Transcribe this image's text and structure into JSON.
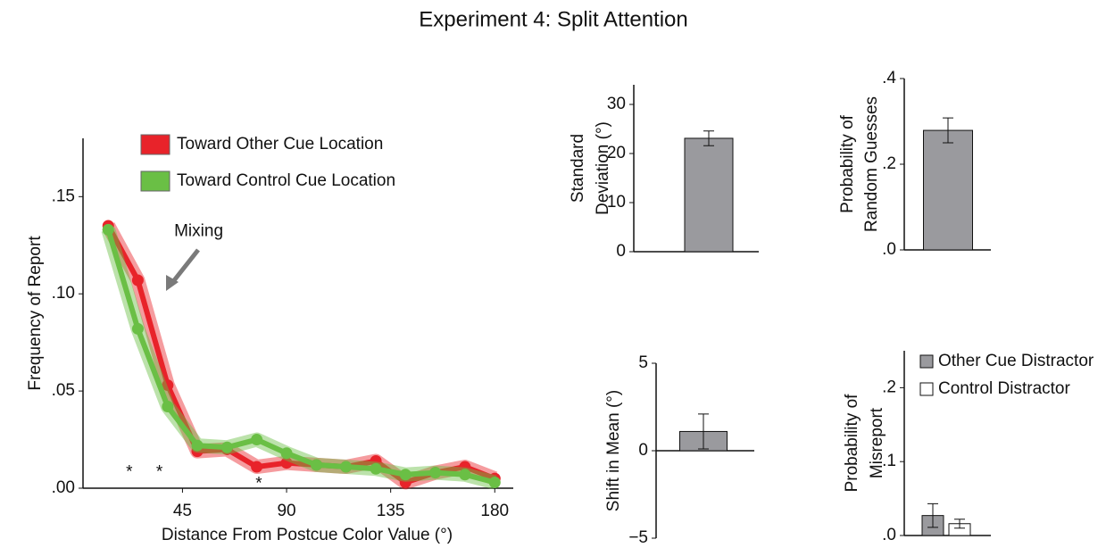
{
  "chart_data": [
    {
      "type": "line",
      "title": "Experiment 4: Split Attention",
      "xlabel": "Distance From Postcue Color Value (°)",
      "ylabel": "Frequency of Report",
      "x": [
        12.9,
        25.7,
        38.6,
        51.4,
        64.3,
        77.1,
        90,
        102.9,
        115.7,
        128.6,
        141.4,
        154.3,
        167.1,
        180
      ],
      "series": [
        {
          "name": "Toward Other Cue Location",
          "color": "#e8232a",
          "values": [
            0.135,
            0.107,
            0.053,
            0.019,
            0.02,
            0.011,
            0.013,
            0.012,
            0.011,
            0.014,
            0.003,
            0.008,
            0.011,
            0.005
          ]
        },
        {
          "name": "Toward Control Cue Location",
          "color": "#6abf45",
          "values": [
            0.133,
            0.082,
            0.042,
            0.022,
            0.021,
            0.025,
            0.018,
            0.012,
            0.011,
            0.01,
            0.007,
            0.008,
            0.007,
            0.003
          ]
        }
      ],
      "xlim": [
        2,
        188
      ],
      "xticks": [
        45,
        90,
        135,
        180
      ],
      "ylim": [
        0,
        0.18
      ],
      "yticks": [
        {
          "value": 0,
          "label": ".00"
        },
        {
          "value": 0.05,
          "label": ".05"
        },
        {
          "value": 0.1,
          "label": ".10"
        },
        {
          "value": 0.15,
          "label": ".15"
        }
      ],
      "legend": "upper left",
      "annotations": [
        {
          "text": "Mixing",
          "x": 52,
          "y": 0.132
        },
        {
          "text": "*",
          "x": 22,
          "y": 0.008
        },
        {
          "text": "*",
          "x": 35,
          "y": 0.008
        },
        {
          "text": "*",
          "x": 78,
          "y": 0.002
        }
      ]
    },
    {
      "type": "bar",
      "ylabel": [
        "Standard",
        "Deviation (°)"
      ],
      "values": [
        23.1
      ],
      "errors": [
        1.5
      ],
      "color": "#9a9a9e",
      "ylim": [
        0,
        34
      ],
      "yticks": [
        0,
        10,
        20,
        30
      ]
    },
    {
      "type": "bar",
      "ylabel": [
        "Probability of",
        "Random Guesses"
      ],
      "values": [
        0.279
      ],
      "errors": [
        0.029
      ],
      "color": "#9a9a9e",
      "ylim": [
        0,
        0.4
      ],
      "yticks": [
        {
          "value": 0,
          "label": ".0"
        },
        {
          "value": 0.2,
          "label": ".2"
        },
        {
          "value": 0.4,
          "label": ".4"
        }
      ]
    },
    {
      "type": "bar",
      "ylabel": [
        "Shift in Mean (°)"
      ],
      "values": [
        1.1
      ],
      "errors": [
        1.0
      ],
      "color": "#9a9a9e",
      "ylim": [
        -5,
        5
      ],
      "yticks": [
        {
          "value": -5,
          "label": "−5"
        },
        0,
        5
      ]
    },
    {
      "type": "bar",
      "ylabel": [
        "Probability of",
        "Misreport"
      ],
      "series": [
        {
          "name": "Other Cue Distractor",
          "color": "#9a9a9e",
          "values": [
            0.027
          ],
          "errors": [
            0.016
          ]
        },
        {
          "name": "Control Distractor",
          "color": "#ffffff",
          "values": [
            0.016
          ],
          "errors": [
            0.006
          ]
        }
      ],
      "ylim": [
        0,
        0.25
      ],
      "yticks": [
        {
          "value": 0,
          "label": ".0"
        },
        {
          "value": 0.1,
          "label": ".1"
        },
        {
          "value": 0.2,
          "label": ".2"
        }
      ],
      "legend": "upper right"
    }
  ]
}
